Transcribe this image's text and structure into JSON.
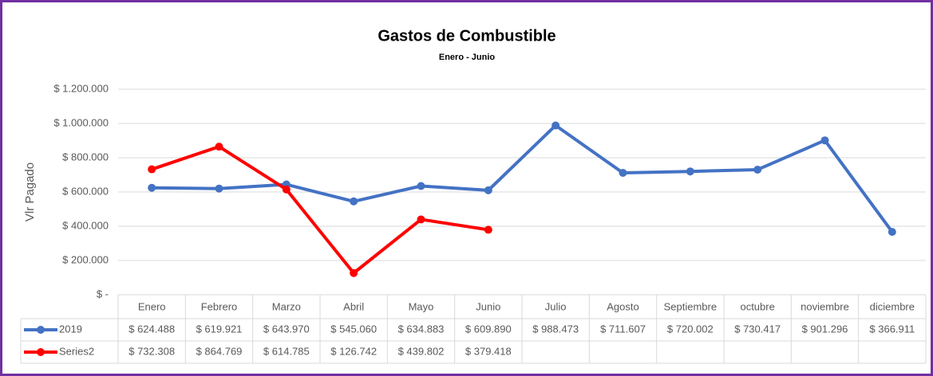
{
  "chart_data": {
    "type": "line",
    "title": "Gastos de Combustible",
    "subtitle": "Enero - Junio",
    "ylabel": "Vlr Pagado",
    "categories": [
      "Enero",
      "Febrero",
      "Marzo",
      "Abril",
      "Mayo",
      "Junio",
      "Julio",
      "Agosto",
      "Septiembre",
      "octubre",
      "noviembre",
      "diciembre"
    ],
    "series": [
      {
        "name": "2019",
        "color": "#4472c4",
        "values": [
          624488,
          619921,
          643970,
          545060,
          634883,
          609890,
          988473,
          711607,
          720002,
          730417,
          901296,
          366911
        ],
        "value_labels": [
          "$ 624.488",
          "$ 619.921",
          "$ 643.970",
          "$ 545.060",
          "$ 634.883",
          "$ 609.890",
          "$ 988.473",
          "$ 711.607",
          "$ 720.002",
          "$ 730.417",
          "$ 901.296",
          "$ 366.911"
        ]
      },
      {
        "name": "Series2",
        "color": "#ff0000",
        "values": [
          732308,
          864769,
          614785,
          126742,
          439802,
          379418,
          null,
          null,
          null,
          null,
          null,
          null
        ],
        "value_labels": [
          "$ 732.308",
          "$ 864.769",
          "$ 614.785",
          "$ 126.742",
          "$ 439.802",
          "$ 379.418",
          null,
          null,
          null,
          null,
          null,
          null
        ]
      }
    ],
    "ylim": [
      0,
      1200000
    ],
    "yticks": [
      {
        "value": 0,
        "label": "$ -"
      },
      {
        "value": 200000,
        "label": "$ 200.000"
      },
      {
        "value": 400000,
        "label": "$ 400.000"
      },
      {
        "value": 600000,
        "label": "$ 600.000"
      },
      {
        "value": 800000,
        "label": "$ 800.000"
      },
      {
        "value": 1000000,
        "label": "$ 1.000.000"
      },
      {
        "value": 1200000,
        "label": "$ 1.200.000"
      }
    ],
    "grid": true,
    "data_table": true
  }
}
